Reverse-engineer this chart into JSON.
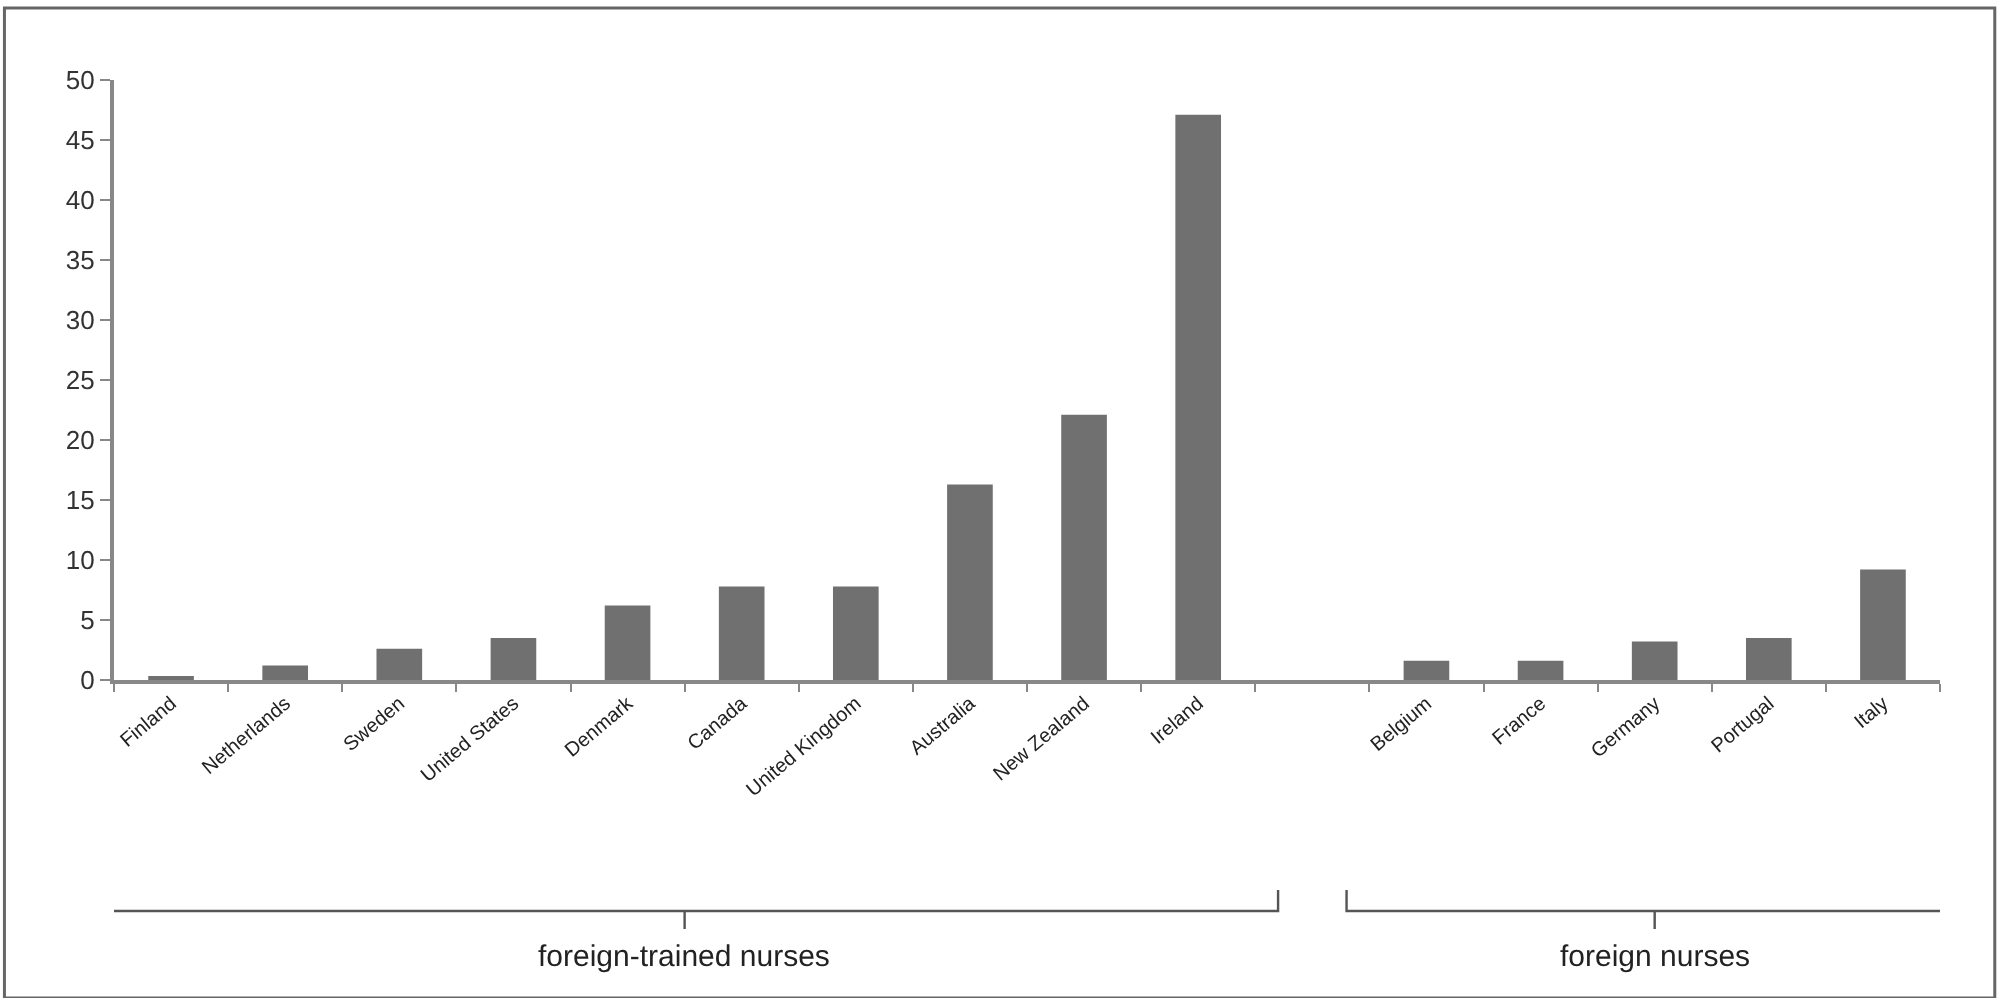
{
  "chart_data": {
    "type": "bar",
    "categories": [
      "Finland",
      "Netherlands",
      "Sweden",
      "United States",
      "Denmark",
      "Canada",
      "United Kingdom",
      "Australia",
      "New Zealand",
      "Ireland",
      null,
      "Belgium",
      "France",
      "Germany",
      "Portugal",
      "Italy"
    ],
    "values": [
      0.3,
      1.2,
      2.6,
      3.5,
      6.2,
      7.8,
      7.8,
      16.3,
      22.1,
      47.1,
      null,
      1.6,
      1.6,
      3.2,
      3.5,
      9.2
    ],
    "color": "#707070",
    "ylim": [
      0,
      50
    ],
    "yticks": [
      0,
      5,
      10,
      15,
      20,
      25,
      30,
      35,
      40,
      45,
      50
    ],
    "annotations": [
      "foreign-trained nurses",
      "foreign nurses"
    ]
  }
}
